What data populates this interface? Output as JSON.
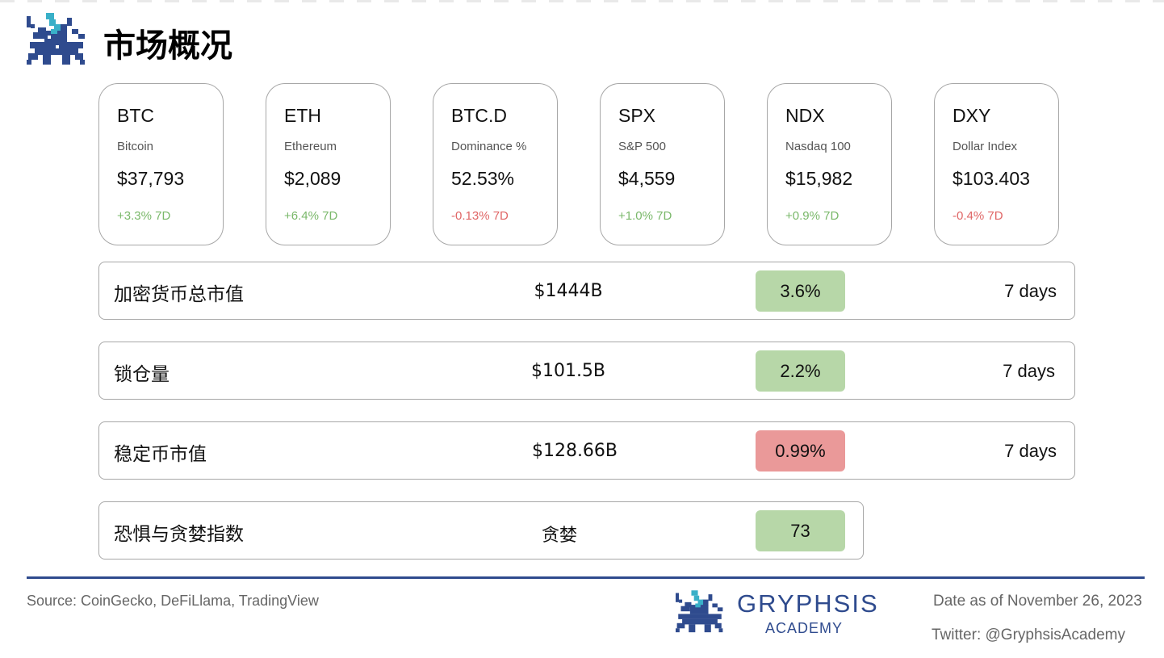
{
  "page": {
    "title": "市场概况"
  },
  "colors": {
    "up": "#7ab86a",
    "down": "#e06666",
    "pill_up": "#b7d7a8",
    "pill_down": "#ea9999",
    "brand": "#2f4b8e"
  },
  "cards": [
    {
      "symbol": "BTC",
      "name": "Bitcoin",
      "price": "$37,793",
      "change": "+3.3% 7D",
      "direction": "up"
    },
    {
      "symbol": "ETH",
      "name": "Ethereum",
      "price": "$2,089",
      "change": "+6.4% 7D",
      "direction": "up"
    },
    {
      "symbol": "BTC.D",
      "name": "Dominance %",
      "price": "52.53%",
      "change": "-0.13% 7D",
      "direction": "down"
    },
    {
      "symbol": "SPX",
      "name": "S&P 500",
      "price": "$4,559",
      "change": "+1.0% 7D",
      "direction": "up"
    },
    {
      "symbol": "NDX",
      "name": "Nasdaq 100",
      "price": "$15,982",
      "change": "+0.9% 7D",
      "direction": "up"
    },
    {
      "symbol": "DXY",
      "name": "Dollar Index",
      "price": "$103.403",
      "change": "-0.4% 7D",
      "direction": "down"
    }
  ],
  "metrics": [
    {
      "label": "加密货币总市值",
      "value": "$1444B",
      "change": "3.6%",
      "direction": "up",
      "period": "7 days"
    },
    {
      "label": "锁仓量",
      "value": "$101.5B",
      "change": "2.2%",
      "direction": "up",
      "period": "7 days"
    },
    {
      "label": "稳定币市值",
      "value": "$128.66B",
      "change": "0.99%",
      "direction": "down",
      "period": "7 days"
    },
    {
      "label": "恐惧与贪婪指数",
      "value": "贪婪",
      "change": "73",
      "direction": "up"
    }
  ],
  "footer": {
    "source": "Source: CoinGecko, DeFiLlama, TradingView",
    "brand_name": "GRYPHSIS",
    "brand_sub": "ACADEMY",
    "date": "Date as of November 26, 2023",
    "twitter": "Twitter: @GryphsisAcademy"
  }
}
